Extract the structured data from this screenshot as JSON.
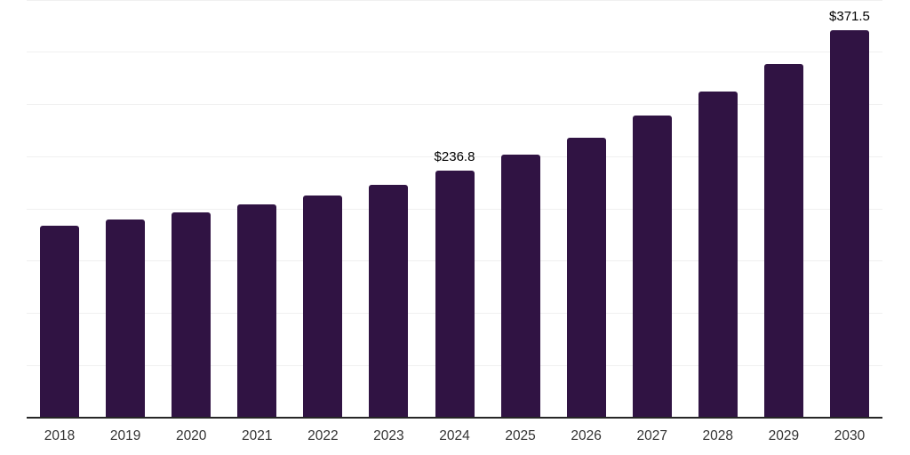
{
  "chart_data": {
    "type": "bar",
    "title": "",
    "xlabel": "",
    "ylabel": "",
    "categories": [
      "2018",
      "2019",
      "2020",
      "2021",
      "2022",
      "2023",
      "2024",
      "2025",
      "2026",
      "2027",
      "2028",
      "2029",
      "2030"
    ],
    "values": [
      184,
      190,
      197,
      204.5,
      213,
      223,
      236.8,
      252,
      268,
      289,
      312,
      339,
      371.5
    ],
    "value_labels": [
      "",
      "",
      "",
      "",
      "",
      "",
      "$236.8",
      "",
      "",
      "",
      "",
      "",
      "$371.5"
    ],
    "ylim": [
      0,
      400
    ],
    "gridline_interval": 50,
    "grid": "horizontal-only",
    "y_axis_tick_labels_visible": false,
    "legend_position": "none",
    "colors": {
      "bar": "#301343",
      "axis_line": "#262626",
      "gridline": "#f0f0f0",
      "tick_label": "#333333",
      "data_label": "#000000",
      "background": "#ffffff"
    }
  }
}
